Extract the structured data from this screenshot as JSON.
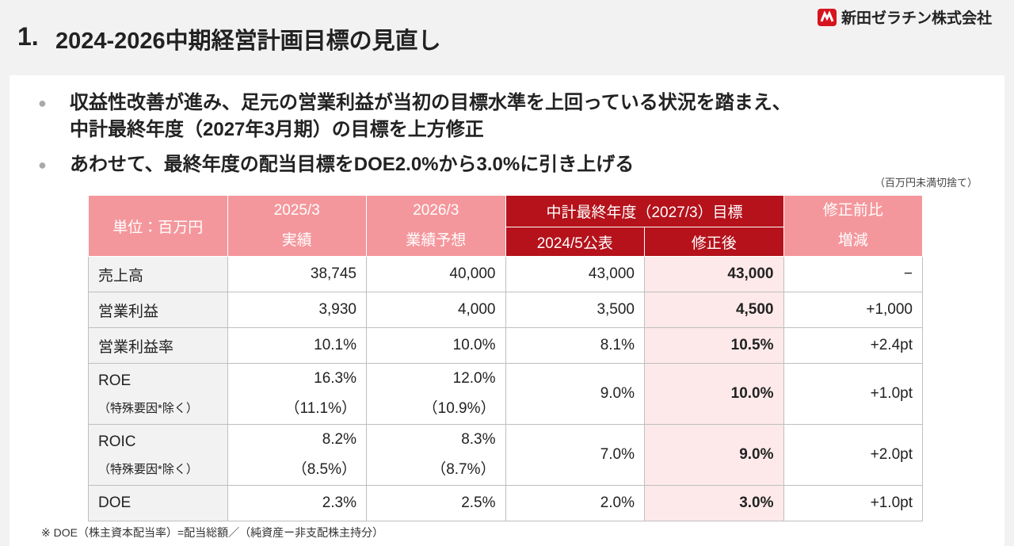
{
  "header": {
    "number": "1.",
    "title": "2024-2026中期経営計画目標の見直し",
    "logo": "新田ゼラチン株式会社"
  },
  "bullets": [
    [
      "収益性改善が進み、足元の営業利益が当初の目標水準を上回っている状況を踏まえ、",
      "中計最終年度（2027年3月期）の目標を上方修正"
    ],
    [
      "あわせて、最終年度の配当目標をDOE2.0%から3.0%に引き上げる"
    ]
  ],
  "unit_note": "（百万円未満切捨て）",
  "table": {
    "unit": "単位：百万円",
    "col_2025": [
      "2025/3",
      "実績"
    ],
    "col_2026": [
      "2026/3",
      "業績予想"
    ],
    "plan_group": "中計最終年度（2027/3）目標",
    "plan_cols": [
      "2024/5公表",
      "修正後"
    ],
    "col_diff": [
      "修正前比",
      "増減"
    ],
    "rows": [
      {
        "label": "売上高",
        "values": [
          "38,745",
          "40,000",
          "43,000",
          "43,000",
          "−"
        ]
      },
      {
        "label": "営業利益",
        "values": [
          "3,930",
          "4,000",
          "3,500",
          "4,500",
          "+1,000"
        ]
      },
      {
        "label": "営業利益率",
        "values": [
          "10.1%",
          "10.0%",
          "8.1%",
          "10.5%",
          "+2.4pt"
        ]
      },
      {
        "label": "ROE",
        "sublabel": "（特殊要因*除く）",
        "values": [
          [
            "16.3%",
            "（11.1%）"
          ],
          [
            "12.0%",
            "（10.9%）"
          ],
          "9.0%",
          "10.0%",
          "+1.0pt"
        ]
      },
      {
        "label": "ROIC",
        "sublabel": "（特殊要因*除く）",
        "values": [
          [
            "8.2%",
            "（8.5%）"
          ],
          [
            "8.3%",
            "（8.7%）"
          ],
          "7.0%",
          "9.0%",
          "+2.0pt"
        ]
      },
      {
        "label": "DOE",
        "values": [
          "2.3%",
          "2.5%",
          "2.0%",
          "3.0%",
          "+1.0pt"
        ]
      }
    ]
  },
  "footnote": "※ DOE（株主資本配当率）=配当総額／（純資産ー非支配株主持分）"
}
